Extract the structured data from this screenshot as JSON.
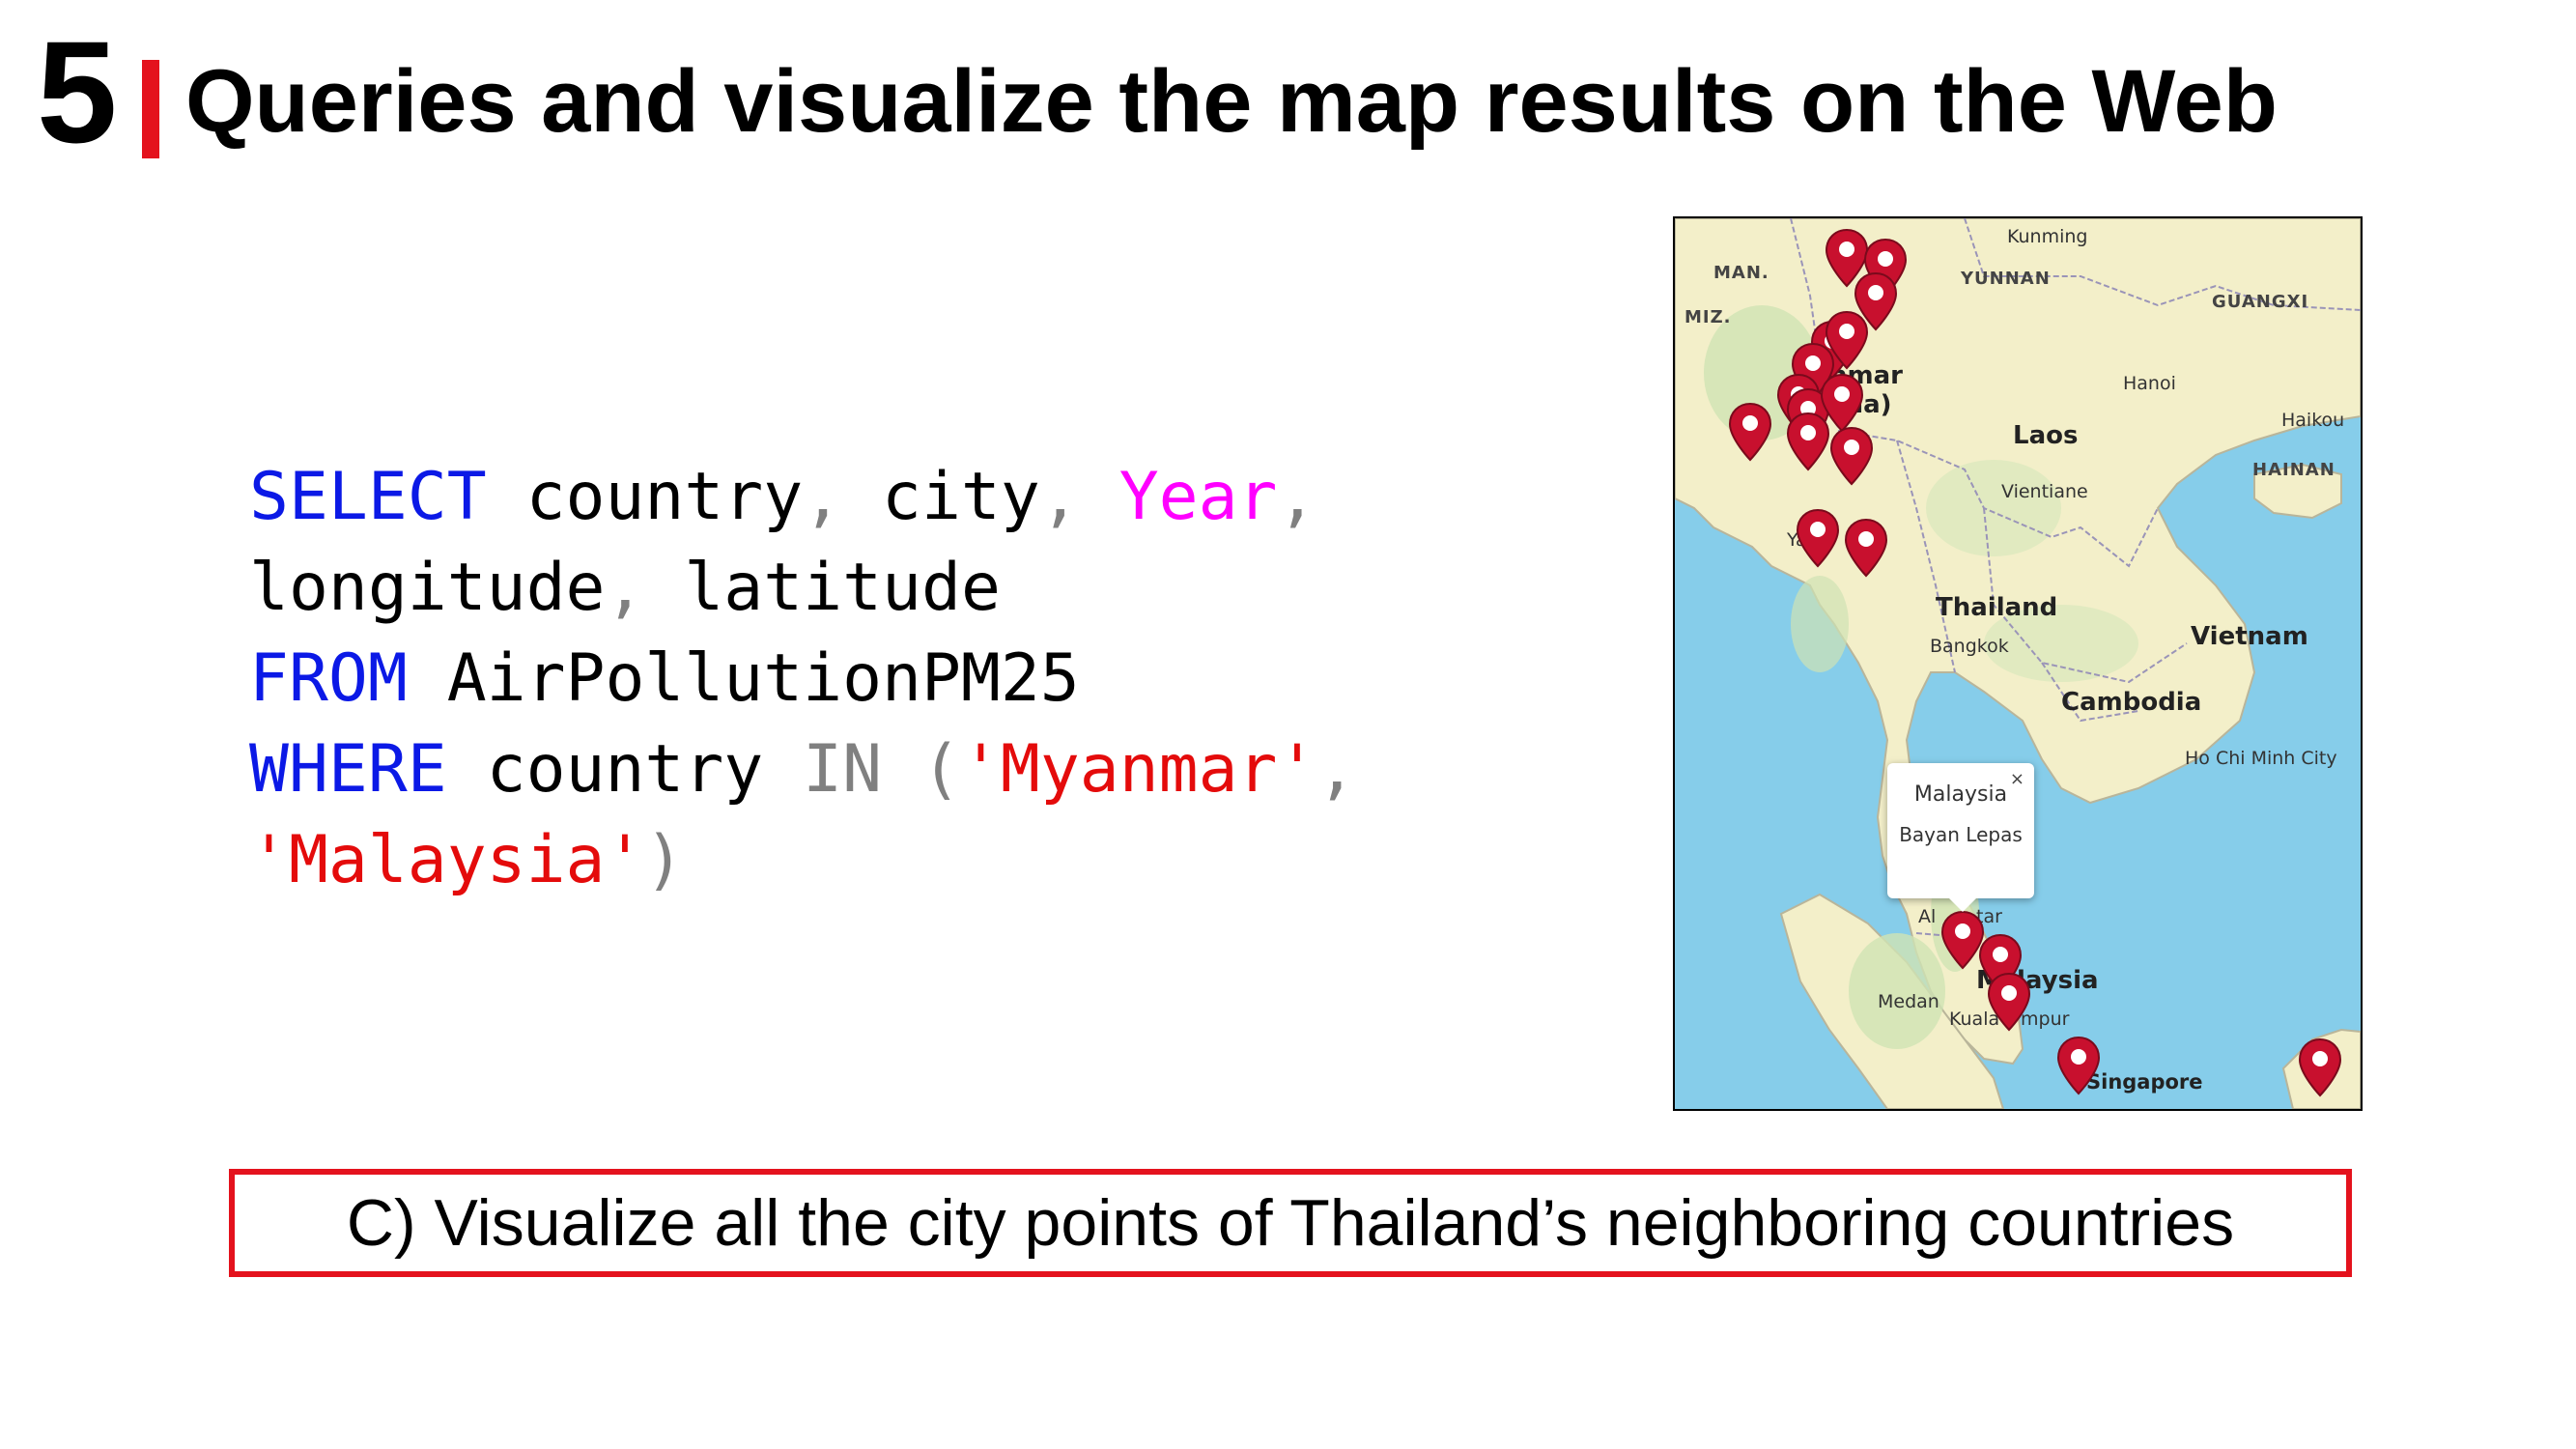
{
  "slide": {
    "number": "5",
    "title": "Queries and visualize the map results on the Web",
    "accent_color": "#e4121d"
  },
  "code": {
    "line1": {
      "kw": "SELECT",
      "t1": " country",
      "p1": ",",
      "t2": " city",
      "p2": ",",
      "fn": " Year",
      "p3": ","
    },
    "line2": {
      "t1": "longitude",
      "p1": ",",
      "t2": " latitude"
    },
    "line3": {
      "kw": "FROM",
      "t1": " AirPollutionPM25"
    },
    "line4": {
      "kw": "WHERE",
      "t1": " country ",
      "op": "IN",
      "p1": " (",
      "s1": "'Myanmar'",
      "p2": ","
    },
    "line5": {
      "s1": "'Malaysia'",
      "p1": ")"
    },
    "colors": {
      "keyword": "#0b19e6",
      "punctuation": "#808080",
      "function": "#ff00ff",
      "string": "#e40b0b"
    }
  },
  "map": {
    "labels": {
      "man": "MAN.",
      "miz": "MIZ.",
      "kunming": "Kunming",
      "yunnan": "YUNNAN",
      "guangxi": "GUANGXI",
      "myanmar": "nmar",
      "myanmar2": "ma)",
      "hanoi": "Hanoi",
      "haikou": "Haikou",
      "hainan": "HAINAN",
      "laos": "Laos",
      "vientiane": "Vientiane",
      "yangon": "Ya",
      "yangon2": "on",
      "thailand": "Thailand",
      "bangkok": "Bangkok",
      "vietnam": "Vietnam",
      "cambodia": "Cambodia",
      "hochiminh": "Ho Chi Minh City",
      "alorsetar": "Al",
      "alorsetar2": "tar",
      "malaysia": "M",
      "malaysia2": "laysia",
      "medan": "Medan",
      "kualalumpur": "Kuala",
      "kualalumpur2": "mpur",
      "singapore": "Singapore"
    },
    "pin_color": "#c8102e",
    "popup": {
      "country": "Malaysia",
      "city": "Bayan Lepas",
      "close": "×"
    }
  },
  "caption": "C) Visualize all the city points of Thailand’s neighboring countries"
}
